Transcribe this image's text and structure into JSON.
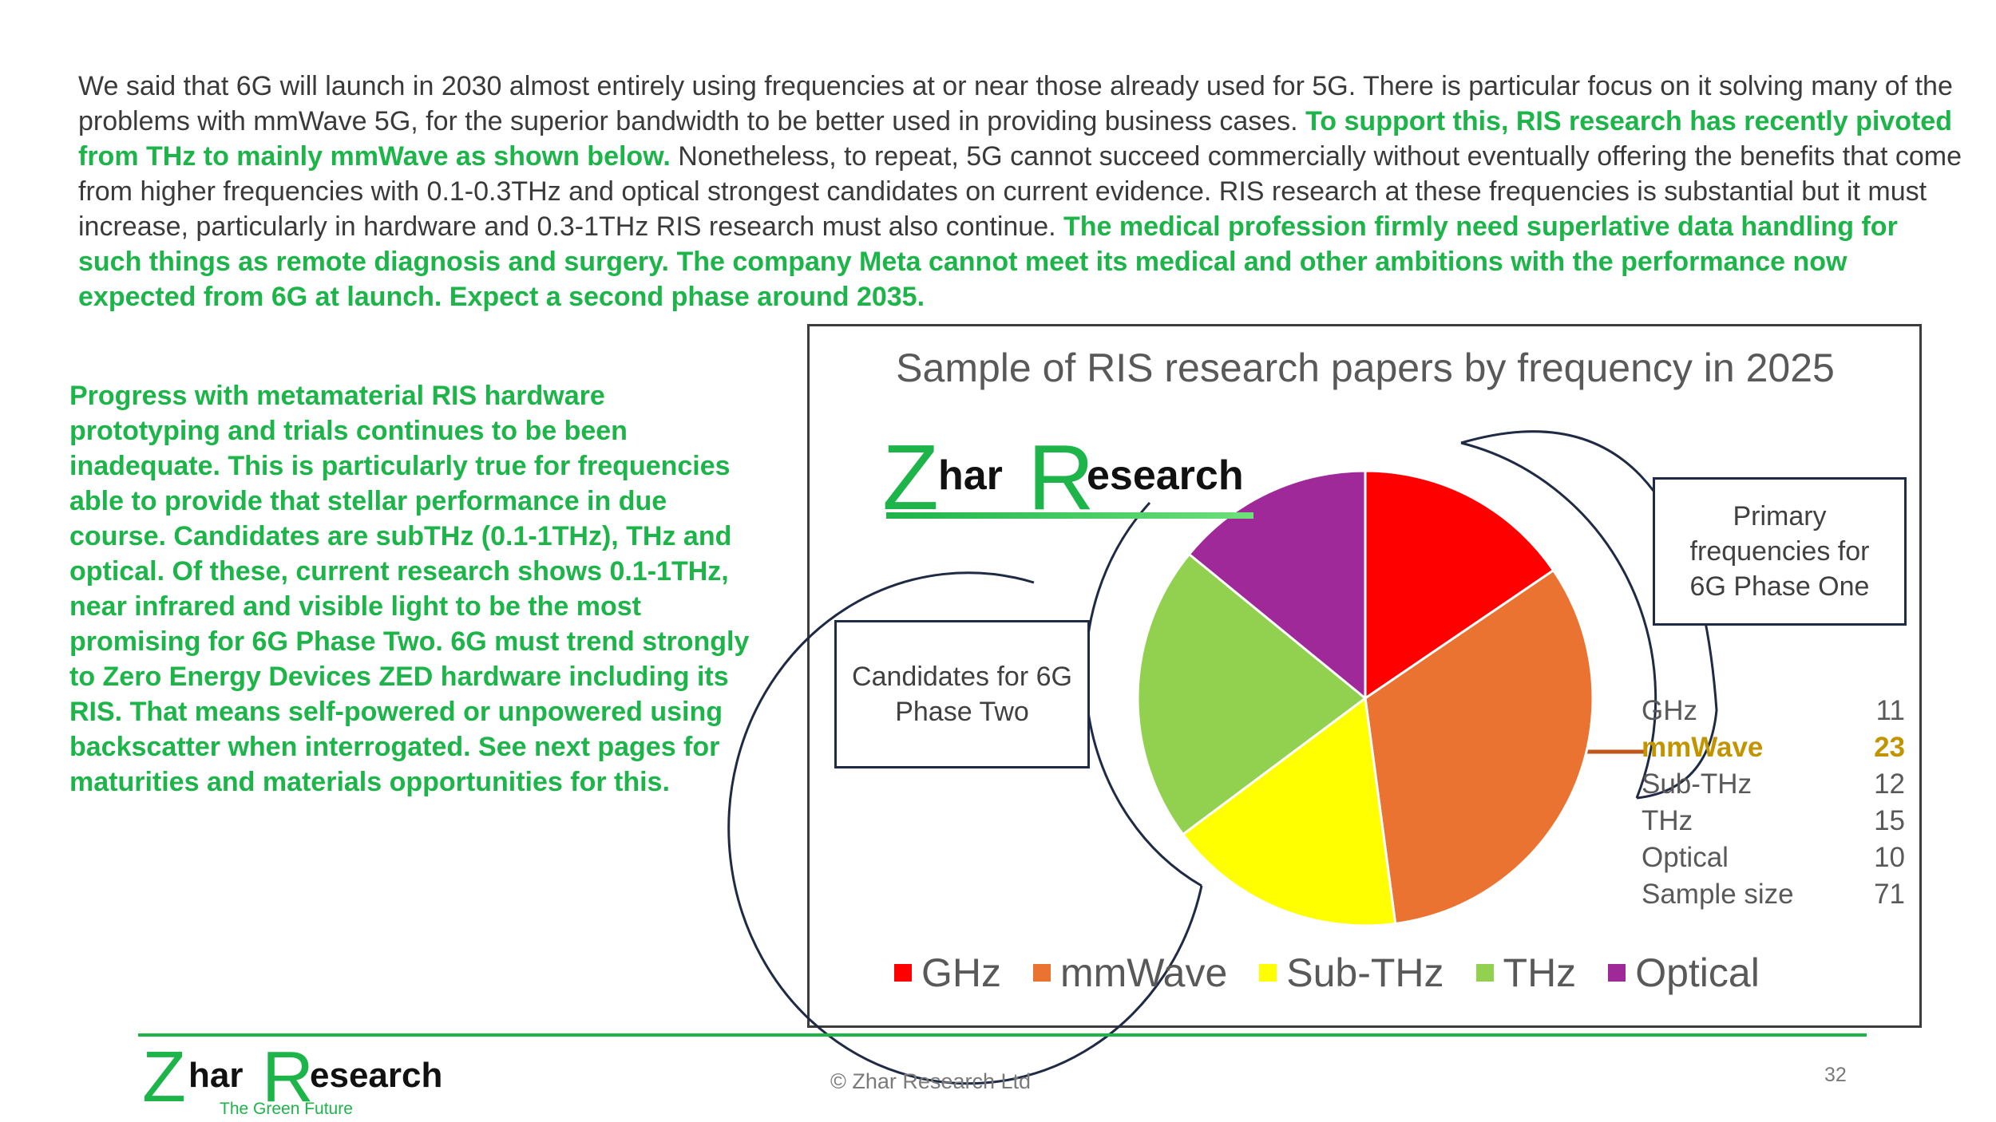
{
  "intro": {
    "p1": "We said that 6G will launch in 2030 almost entirely using frequencies at or near those already used for 5G. There is particular focus on it solving many of the problems with mmWave 5G, for the superior bandwidth to be better used in providing business cases. ",
    "p2_green": "To support this, RIS research has recently pivoted from THz to mainly mmWave as shown below.",
    "p3": " Nonetheless, to repeat, 5G cannot succeed commercially without eventually offering the benefits that come from higher frequencies with 0.1-0.3THz and optical strongest candidates on current evidence. RIS research at these frequencies is substantial but it must increase, particularly in hardware and 0.3-1THz RIS research must also continue. ",
    "p4_green": "The medical profession firmly need superlative data handling for such things as remote diagnosis and surgery. The company Meta cannot meet its medical and other ambitions with the performance now expected from 6G at launch. Expect a second phase around 2035."
  },
  "left_paragraph": "Progress with metamaterial RIS hardware prototyping and trials continues to be been inadequate. This is particularly true for frequencies able to provide that stellar performance in due course. Candidates are subTHz (0.1-1THz), THz and optical. Of these, current research shows 0.1-1THz, near infrared and visible light to be the most promising for 6G Phase Two. 6G must trend strongly to Zero Energy Devices ZED hardware including its RIS. That means self-powered or unpowered using backscatter when interrogated. See next pages for maturities and materials opportunities for this.",
  "logo": {
    "z": "Z",
    "har": "har",
    "r": "R",
    "esearch": "esearch"
  },
  "chart_data": {
    "type": "pie",
    "title": "Sample of RIS research papers by frequency in 2025",
    "categories": [
      "GHz",
      "mmWave",
      "Sub-THz",
      "THz",
      "Optical"
    ],
    "values": [
      11,
      23,
      12,
      15,
      10
    ],
    "colors": [
      "#ff0000",
      "#ea7332",
      "#ffff00",
      "#92d050",
      "#a0299a"
    ],
    "legend": "bottom",
    "table": [
      {
        "label": "GHz",
        "value": "11"
      },
      {
        "label": "mmWave",
        "value": "23"
      },
      {
        "label": "Sub-THz",
        "value": "12"
      },
      {
        "label": "THz",
        "value": "15"
      },
      {
        "label": "Optical",
        "value": "10"
      },
      {
        "label": "Sample size",
        "value": "71"
      }
    ],
    "callouts": {
      "phase_one": "Primary frequencies for 6G Phase One",
      "phase_two": "Candidates for 6G Phase Two"
    }
  },
  "footer": {
    "copyright": "© Zhar Research Ltd",
    "page_number": "32",
    "tagline": "The Green Future"
  }
}
